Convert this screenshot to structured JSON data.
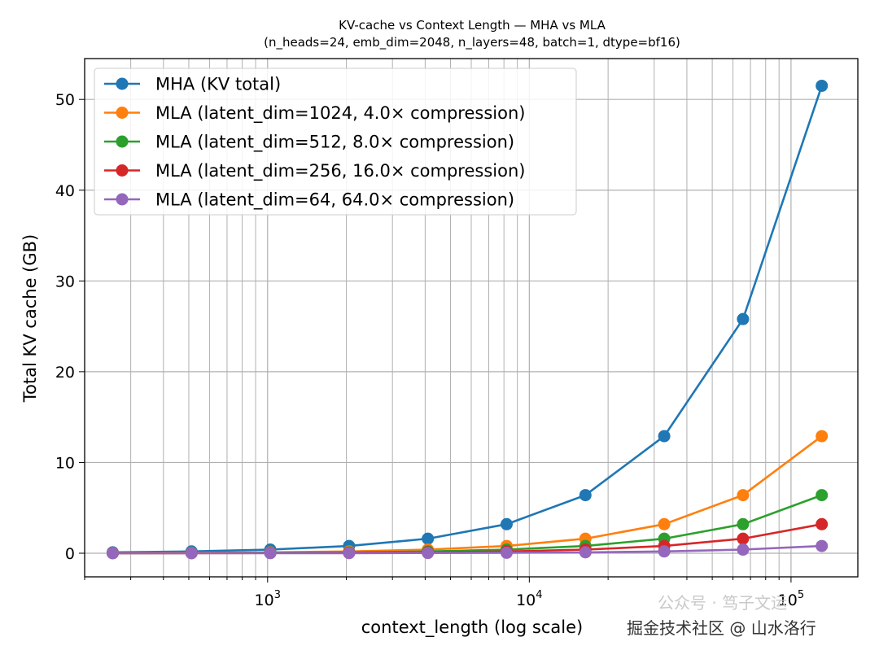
{
  "chart_data": {
    "type": "line",
    "title": "KV-cache vs Context Length — MHA vs MLA",
    "subtitle": "(n_heads=24, emb_dim=2048, n_layers=48, batch=1, dtype=bf16)",
    "xlabel": "context_length (log scale)",
    "ylabel": "Total KV cache (GB)",
    "x_scale": "log",
    "x": [
      256,
      512,
      1024,
      2048,
      4096,
      8192,
      16384,
      32768,
      65536,
      131072
    ],
    "xlim": [
      200,
      180000
    ],
    "ylim": [
      -2.6,
      54.5
    ],
    "y_ticks": [
      0,
      10,
      20,
      30,
      40,
      50
    ],
    "y_tick_labels": [
      "0",
      "10",
      "20",
      "30",
      "40",
      "50"
    ],
    "x_ticks": [
      1000,
      10000,
      100000
    ],
    "x_tick_labels": [
      {
        "base": "10",
        "exp": "3"
      },
      {
        "base": "10",
        "exp": "4"
      },
      {
        "base": "10",
        "exp": "5"
      }
    ],
    "grid": "both (major and minor)",
    "legend_position": "top-left",
    "series": [
      {
        "name": "MHA (KV total)",
        "color": "#1f77b4",
        "values": [
          0.1,
          0.2,
          0.4,
          0.8,
          1.6,
          3.2,
          6.4,
          12.9,
          25.8,
          51.5
        ]
      },
      {
        "name": "MLA (latent_dim=1024, 4.0× compression)",
        "color": "#ff7f0e",
        "values": [
          0.03,
          0.05,
          0.1,
          0.2,
          0.4,
          0.8,
          1.6,
          3.2,
          6.4,
          12.9
        ]
      },
      {
        "name": "MLA (latent_dim=512, 8.0× compression)",
        "color": "#2ca02c",
        "values": [
          0.01,
          0.03,
          0.05,
          0.1,
          0.2,
          0.4,
          0.8,
          1.6,
          3.2,
          6.4
        ]
      },
      {
        "name": "MLA (latent_dim=256, 16.0× compression)",
        "color": "#d62728",
        "values": [
          0.01,
          0.01,
          0.03,
          0.05,
          0.1,
          0.2,
          0.4,
          0.8,
          1.6,
          3.2
        ]
      },
      {
        "name": "MLA (latent_dim=64, 64.0× compression)",
        "color": "#9467bd",
        "values": [
          0.0,
          0.0,
          0.01,
          0.01,
          0.03,
          0.05,
          0.1,
          0.2,
          0.4,
          0.8
        ]
      }
    ]
  },
  "watermark": {
    "line1": "公众号 · 笃子文运",
    "line2": "掘金技术社区 @ 山水洛行"
  }
}
